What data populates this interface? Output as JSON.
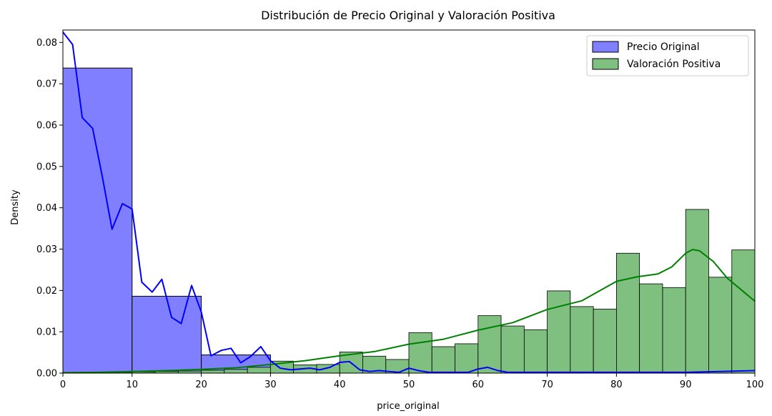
{
  "chart_data": {
    "type": "histogram",
    "title": "Distribución de Precio Original y Valoración Positiva",
    "xlabel": "price_original",
    "ylabel": "Density",
    "xlim": [
      0,
      100
    ],
    "ylim": [
      0,
      0.083
    ],
    "xticks": [
      0,
      10,
      20,
      30,
      40,
      50,
      60,
      70,
      80,
      90,
      100
    ],
    "yticks": [
      0.0,
      0.01,
      0.02,
      0.03,
      0.04,
      0.05,
      0.06,
      0.07,
      0.08
    ],
    "ytick_labels": [
      "0.00",
      "0.01",
      "0.02",
      "0.03",
      "0.04",
      "0.05",
      "0.06",
      "0.07",
      "0.08"
    ],
    "grid": false,
    "legend_position": "top-right",
    "series": [
      {
        "name": "Precio Original",
        "color": "#0000ff",
        "fill_color": "#7f7fff",
        "bins": [
          {
            "x0": 0,
            "x1": 10,
            "value": 0.0738
          },
          {
            "x0": 10,
            "x1": 20,
            "value": 0.0186
          },
          {
            "x0": 20,
            "x1": 30,
            "value": 0.0044
          },
          {
            "x0": 30,
            "x1": 40,
            "value": 0.0018
          },
          {
            "x0": 40,
            "x1": 50,
            "value": 0.0006
          },
          {
            "x0": 50,
            "x1": 60,
            "value": 0.0004
          },
          {
            "x0": 60,
            "x1": 70,
            "value": 0.0003
          },
          {
            "x0": 70,
            "x1": 80,
            "value": 0.0002
          },
          {
            "x0": 80,
            "x1": 90,
            "value": 0.0002
          },
          {
            "x0": 90,
            "x1": 100,
            "value": 0.0002
          }
        ],
        "kde": {
          "x": [
            0,
            1.4,
            2.8,
            4.3,
            5.7,
            7.1,
            8.6,
            10,
            11.4,
            12.9,
            14.3,
            15.7,
            17.1,
            18.6,
            20,
            21.4,
            22.9,
            24.3,
            25.7,
            27.1,
            28.6,
            30,
            31.4,
            32.9,
            34.3,
            35.7,
            37.1,
            38.6,
            40,
            41.4,
            42.9,
            44.3,
            45.7,
            47.1,
            48.6,
            50,
            51.4,
            52.9,
            54.3,
            55.7,
            57.1,
            58.6,
            60,
            61.4,
            62.9,
            64.3,
            65.7,
            70,
            80,
            90,
            100
          ],
          "y": [
            0.0825,
            0.0795,
            0.0618,
            0.0592,
            0.0475,
            0.0348,
            0.041,
            0.0397,
            0.022,
            0.0196,
            0.0227,
            0.0135,
            0.012,
            0.0212,
            0.0148,
            0.0042,
            0.0055,
            0.006,
            0.0025,
            0.004,
            0.0064,
            0.003,
            0.0012,
            0.0008,
            0.001,
            0.0012,
            0.0008,
            0.0014,
            0.0026,
            0.0028,
            0.0008,
            0.0004,
            0.0006,
            0.0004,
            0.0002,
            0.0012,
            0.0006,
            0.0002,
            0.0002,
            0.0002,
            0.0002,
            0.0002,
            0.001,
            0.0014,
            0.0006,
            0.0002,
            0.0002,
            0.0002,
            0.0002,
            0.0002,
            0.0006
          ]
        }
      },
      {
        "name": "Valoración Positiva",
        "color": "#008000",
        "fill_color": "#7fbf7f",
        "bins": [
          {
            "x0": 0,
            "x1": 3.33,
            "value": 0.0001
          },
          {
            "x0": 3.33,
            "x1": 6.67,
            "value": 0.0001
          },
          {
            "x0": 6.67,
            "x1": 10,
            "value": 0.0002
          },
          {
            "x0": 10,
            "x1": 13.33,
            "value": 0.0003
          },
          {
            "x0": 13.33,
            "x1": 16.67,
            "value": 0.0004
          },
          {
            "x0": 16.67,
            "x1": 20,
            "value": 0.0005
          },
          {
            "x0": 20,
            "x1": 23.33,
            "value": 0.0007
          },
          {
            "x0": 23.33,
            "x1": 26.67,
            "value": 0.0009
          },
          {
            "x0": 26.67,
            "x1": 30,
            "value": 0.0014
          },
          {
            "x0": 30,
            "x1": 33.33,
            "value": 0.0029
          },
          {
            "x0": 33.33,
            "x1": 36.67,
            "value": 0.002
          },
          {
            "x0": 36.67,
            "x1": 40,
            "value": 0.0021
          },
          {
            "x0": 40,
            "x1": 43.33,
            "value": 0.0051
          },
          {
            "x0": 43.33,
            "x1": 46.67,
            "value": 0.0041
          },
          {
            "x0": 46.67,
            "x1": 50,
            "value": 0.0033
          },
          {
            "x0": 50,
            "x1": 53.33,
            "value": 0.0098
          },
          {
            "x0": 53.33,
            "x1": 56.67,
            "value": 0.0064
          },
          {
            "x0": 56.67,
            "x1": 60,
            "value": 0.0071
          },
          {
            "x0": 60,
            "x1": 63.33,
            "value": 0.0139
          },
          {
            "x0": 63.33,
            "x1": 66.67,
            "value": 0.0114
          },
          {
            "x0": 66.67,
            "x1": 70,
            "value": 0.0105
          },
          {
            "x0": 70,
            "x1": 73.33,
            "value": 0.0199
          },
          {
            "x0": 73.33,
            "x1": 76.67,
            "value": 0.0161
          },
          {
            "x0": 76.67,
            "x1": 80,
            "value": 0.0155
          },
          {
            "x0": 80,
            "x1": 83.33,
            "value": 0.029
          },
          {
            "x0": 83.33,
            "x1": 86.67,
            "value": 0.0216
          },
          {
            "x0": 86.67,
            "x1": 90,
            "value": 0.0207
          },
          {
            "x0": 90,
            "x1": 93.33,
            "value": 0.0396
          },
          {
            "x0": 93.33,
            "x1": 96.67,
            "value": 0.0232
          },
          {
            "x0": 96.67,
            "x1": 100,
            "value": 0.0298
          }
        ],
        "kde": {
          "x": [
            0,
            5,
            10,
            15,
            20,
            25,
            30,
            35,
            40,
            45,
            50,
            55,
            60,
            65,
            70,
            75,
            80,
            83,
            86,
            88,
            90,
            91,
            92,
            94,
            96,
            98,
            100
          ],
          "y": [
            0.0001,
            0.0002,
            0.0004,
            0.0006,
            0.0009,
            0.0013,
            0.0021,
            0.003,
            0.0042,
            0.0052,
            0.007,
            0.0082,
            0.0104,
            0.0122,
            0.0154,
            0.0175,
            0.0222,
            0.0233,
            0.024,
            0.0257,
            0.029,
            0.0299,
            0.0296,
            0.027,
            0.023,
            0.0202,
            0.0174
          ]
        }
      }
    ]
  }
}
